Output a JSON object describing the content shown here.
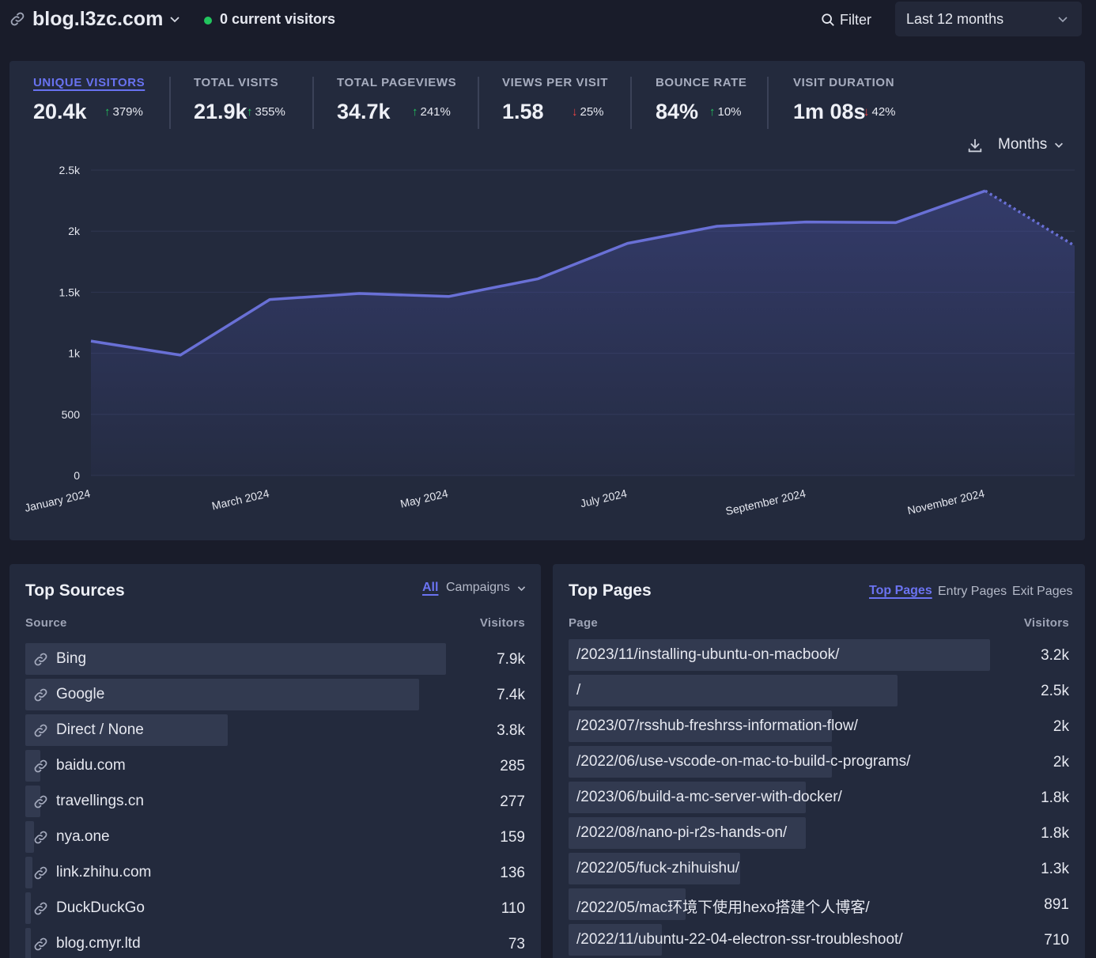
{
  "header": {
    "site_name": "blog.l3zc.com",
    "live_visitors": "0 current visitors",
    "filter_label": "Filter",
    "period_label": "Last 12 months"
  },
  "stats": [
    {
      "label": "UNIQUE VISITORS",
      "value": "20.4k",
      "change": "379%",
      "direction": "up",
      "active": true
    },
    {
      "label": "TOTAL VISITS",
      "value": "21.9k",
      "change": "355%",
      "direction": "up",
      "active": false
    },
    {
      "label": "TOTAL PAGEVIEWS",
      "value": "34.7k",
      "change": "241%",
      "direction": "up",
      "active": false
    },
    {
      "label": "VIEWS PER VISIT",
      "value": "1.58",
      "change": "25%",
      "direction": "down",
      "active": false
    },
    {
      "label": "BOUNCE RATE",
      "value": "84%",
      "change": "10%",
      "direction": "up",
      "active": false
    },
    {
      "label": "VISIT DURATION",
      "value": "1m 08s",
      "change": "42%",
      "direction": "down",
      "active": false
    }
  ],
  "interval_label": "Months",
  "colors": {
    "accent": "#6b73f2",
    "line": "#6970d6",
    "up": "#22c55e",
    "down": "#ef4444"
  },
  "chart_data": {
    "type": "area",
    "title": "",
    "xlabel": "",
    "ylabel": "",
    "ylim": [
      0,
      2500
    ],
    "yticks": [
      "0",
      "500",
      "1k",
      "1.5k",
      "2k",
      "2.5k"
    ],
    "ytick_values": [
      0,
      500,
      1000,
      1500,
      2000,
      2500
    ],
    "x": [
      "January 2024",
      "February 2024",
      "March 2024",
      "April 2024",
      "May 2024",
      "June 2024",
      "July 2024",
      "August 2024",
      "September 2024",
      "October 2024",
      "November 2024",
      "December 2024"
    ],
    "xtick_labels": [
      "January 2024",
      "March 2024",
      "May 2024",
      "July 2024",
      "September 2024",
      "November 2024"
    ],
    "series": [
      {
        "name": "Unique visitors",
        "values": [
          1100,
          985,
          1440,
          1490,
          1465,
          1610,
          1900,
          2040,
          2075,
          2070,
          2330,
          1880
        ],
        "last_point_incomplete": true
      }
    ]
  },
  "top_sources": {
    "title": "Top Sources",
    "tab_all": "All",
    "tab_campaigns": "Campaigns",
    "col_source": "Source",
    "col_visitors": "Visitors",
    "rows": [
      {
        "label": "Bing",
        "value": "7.9k",
        "visitors": 7900
      },
      {
        "label": "Google",
        "value": "7.4k",
        "visitors": 7400
      },
      {
        "label": "Direct / None",
        "value": "3.8k",
        "visitors": 3800
      },
      {
        "label": "baidu.com",
        "value": "285",
        "visitors": 285
      },
      {
        "label": "travellings.cn",
        "value": "277",
        "visitors": 277
      },
      {
        "label": "nya.one",
        "value": "159",
        "visitors": 159
      },
      {
        "label": "link.zhihu.com",
        "value": "136",
        "visitors": 136
      },
      {
        "label": "DuckDuckGo",
        "value": "110",
        "visitors": 110
      },
      {
        "label": "blog.cmyr.ltd",
        "value": "73",
        "visitors": 73
      }
    ]
  },
  "top_pages": {
    "title": "Top Pages",
    "tab_top": "Top Pages",
    "tab_entry": "Entry Pages",
    "tab_exit": "Exit Pages",
    "col_page": "Page",
    "col_visitors": "Visitors",
    "rows": [
      {
        "label": "/2023/11/installing-ubuntu-on-macbook/",
        "value": "3.2k",
        "visitors": 3200
      },
      {
        "label": "/",
        "value": "2.5k",
        "visitors": 2500
      },
      {
        "label": "/2023/07/rsshub-freshrss-information-flow/",
        "value": "2k",
        "visitors": 2000
      },
      {
        "label": "/2022/06/use-vscode-on-mac-to-build-c-programs/",
        "value": "2k",
        "visitors": 2000
      },
      {
        "label": "/2023/06/build-a-mc-server-with-docker/",
        "value": "1.8k",
        "visitors": 1800
      },
      {
        "label": "/2022/08/nano-pi-r2s-hands-on/",
        "value": "1.8k",
        "visitors": 1800
      },
      {
        "label": "/2022/05/fuck-zhihuishu/",
        "value": "1.3k",
        "visitors": 1300
      },
      {
        "label": "/2022/05/mac环境下使用hexo搭建个人博客/",
        "value": "891",
        "visitors": 891
      },
      {
        "label": "/2022/11/ubuntu-22-04-electron-ssr-troubleshoot/",
        "value": "710",
        "visitors": 710
      }
    ]
  }
}
